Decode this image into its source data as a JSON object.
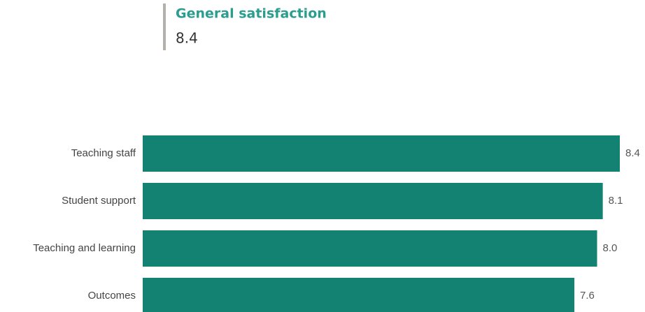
{
  "kpi": {
    "title": "General satisfaction",
    "value": 8.4
  },
  "chart_data": {
    "type": "bar",
    "orientation": "horizontal",
    "categories": [
      "Teaching staff",
      "Student support",
      "Teaching and learning",
      "Outcomes"
    ],
    "values": [
      8.4,
      8.1,
      8.0,
      7.6
    ],
    "value_labels": [
      "8.4",
      "8.1",
      "8.0",
      "7.6"
    ],
    "color": "#148272"
  }
}
